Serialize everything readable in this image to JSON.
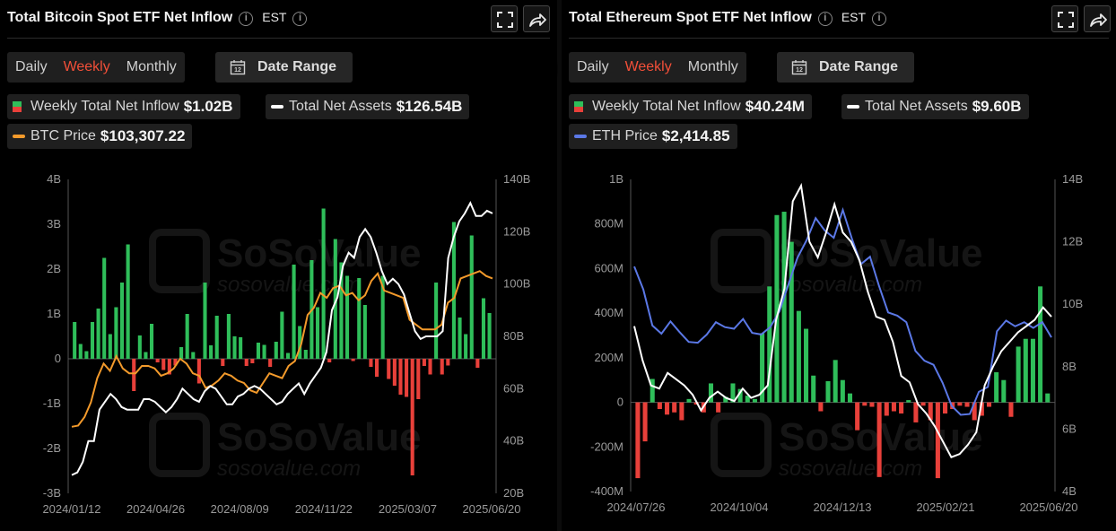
{
  "btc": {
    "title": "Total Bitcoin Spot ETF Net Inflow",
    "timezone": "EST",
    "tabs": [
      "Daily",
      "Weekly",
      "Monthly"
    ],
    "active_tab": "Weekly",
    "date_range_label": "Date Range",
    "calendar_day": "12",
    "stats": [
      {
        "label": "Weekly Total Net Inflow",
        "value": "$1.02B"
      },
      {
        "label": "Total Net Assets",
        "value": "$126.54B"
      },
      {
        "label": "BTC Price",
        "value": "$103,307.22"
      }
    ],
    "watermark": {
      "name": "SoSoValue",
      "url": "sosovalue.com"
    }
  },
  "eth": {
    "title": "Total Ethereum Spot ETF Net Inflow",
    "timezone": "EST",
    "tabs": [
      "Daily",
      "Weekly",
      "Monthly"
    ],
    "active_tab": "Weekly",
    "date_range_label": "Date Range",
    "calendar_day": "12",
    "stats": [
      {
        "label": "Weekly Total Net Inflow",
        "value": "$40.24M"
      },
      {
        "label": "Total Net Assets",
        "value": "$9.60B"
      },
      {
        "label": "ETH Price",
        "value": "$2,414.85"
      }
    ],
    "watermark": {
      "name": "SoSoValue",
      "url": "sosovalue.com"
    }
  },
  "colors": {
    "inflow": "#2fbe5a",
    "outflow": "#e8403a",
    "assets": "#ffffff",
    "btc_price": "#f39a2b",
    "eth_price": "#5b78e6",
    "active_tab": "#f24f38"
  },
  "chart_data": [
    {
      "type": "bar",
      "x_labels": [
        "2024/01/12",
        "2024/04/26",
        "2024/08/09",
        "2024/11/22",
        "2025/03/07",
        "2025/06/20"
      ],
      "y_left_ticks": [
        "4B",
        "3B",
        "2B",
        "1B",
        "0",
        "-1B",
        "-2B",
        "-3B"
      ],
      "y_right_ticks": [
        "140B",
        "120B",
        "100B",
        "80B",
        "60B",
        "40B",
        "20B"
      ],
      "ylim_left": [
        -3,
        4
      ],
      "ylim_right": [
        20,
        140
      ],
      "grid": false,
      "series": [
        {
          "name": "Weekly Total Net Inflow",
          "unit": "B USD",
          "values": [
            0.82,
            0.33,
            0.17,
            0.82,
            1.12,
            2.25,
            0.55,
            1.15,
            1.7,
            2.55,
            -0.72,
            0.52,
            0.15,
            0.78,
            -0.08,
            -0.25,
            -0.35,
            -0.15,
            0.26,
            1.0,
            0.15,
            -0.55,
            1.7,
            0.3,
            0.96,
            -0.16,
            1.0,
            0.5,
            0.48,
            -0.16,
            -0.1,
            0.36,
            0.31,
            -0.18,
            0.38,
            1.05,
            0.13,
            2.1,
            0.73,
            0.2,
            2.2,
            1.15,
            3.35,
            -0.08,
            2.67,
            2.15,
            1.85,
            -0.05,
            1.8,
            1.2,
            -0.18,
            -0.4,
            1.85,
            -0.45,
            -0.6,
            -0.8,
            -0.85,
            -2.6,
            -0.9,
            -0.16,
            -0.35,
            1.7,
            -0.35,
            -0.15,
            3.05,
            0.92,
            0.55,
            2.75,
            -0.2,
            1.35,
            1.02
          ]
        },
        {
          "name": "Total Net Assets",
          "unit": "B USD",
          "values": [
            27,
            28,
            32,
            40,
            40,
            52,
            55,
            58,
            56,
            53,
            52,
            52,
            52,
            56,
            56,
            55,
            53,
            51,
            53,
            56,
            60,
            58,
            56,
            55,
            59,
            61,
            60,
            57,
            54,
            54,
            57,
            58,
            60,
            61,
            60,
            58,
            56,
            54,
            55,
            58,
            60,
            62,
            58,
            62,
            65,
            68,
            74,
            90,
            95,
            107,
            112,
            110,
            118,
            121,
            118,
            112,
            105,
            100,
            102,
            100,
            96,
            89,
            82,
            79,
            80,
            80,
            80,
            82,
            110,
            118,
            124,
            127,
            131,
            126,
            126,
            128,
            127
          ]
        },
        {
          "name": "BTC Price",
          "unit": "USD",
          "values": [
            42000,
            42500,
            46000,
            52000,
            62000,
            68000,
            65000,
            71000,
            66000,
            64000,
            64000,
            67000,
            67000,
            66000,
            63000,
            64000,
            66000,
            70000,
            68000,
            64000,
            63000,
            58000,
            59000,
            61000,
            64000,
            63000,
            61000,
            60000,
            57000,
            56000,
            60000,
            64000,
            63000,
            62000,
            67000,
            69000,
            76000,
            88000,
            91000,
            97000,
            95000,
            99000,
            100000,
            96000,
            97000,
            94000,
            96000,
            102000,
            105000,
            98000,
            97000,
            96000,
            95000,
            86000,
            84000,
            82000,
            82000,
            82000,
            84000,
            93000,
            95000,
            103000,
            104000,
            105000,
            106000,
            104000,
            103000
          ]
        }
      ]
    },
    {
      "type": "bar",
      "x_labels": [
        "2024/07/26",
        "2024/10/04",
        "2024/12/13",
        "2025/02/21",
        "2025/06/20"
      ],
      "y_left_ticks": [
        "1B",
        "800M",
        "600M",
        "400M",
        "200M",
        "0",
        "-200M",
        "-400M"
      ],
      "y_right_ticks": [
        "14B",
        "12B",
        "10B",
        "8B",
        "6B",
        "4B"
      ],
      "ylim_left": [
        -400,
        1000
      ],
      "ylim_right": [
        4,
        14
      ],
      "grid": false,
      "series": [
        {
          "name": "Weekly Total Net Inflow",
          "unit": "M USD",
          "values": [
            -340,
            -175,
            105,
            -30,
            -55,
            -45,
            -80,
            15,
            -10,
            -45,
            85,
            -45,
            25,
            85,
            60,
            30,
            15,
            310,
            520,
            840,
            855,
            720,
            410,
            330,
            120,
            -40,
            95,
            190,
            100,
            40,
            -125,
            -15,
            -20,
            -335,
            -60,
            -40,
            -50,
            10,
            -90,
            -15,
            -80,
            -340,
            -50,
            -30,
            -15,
            -20,
            -80,
            -60,
            -20,
            135,
            100,
            -65,
            250,
            285,
            285,
            520,
            40
          ]
        },
        {
          "name": "Total Net Assets",
          "unit": "B USD",
          "values": [
            9.3,
            8.2,
            7.4,
            7.3,
            7.8,
            7.6,
            7.4,
            7.1,
            6.6,
            7.0,
            7.2,
            7.0,
            6.9,
            7.3,
            7.0,
            7.1,
            7.4,
            9.5,
            10.5,
            13.3,
            13.8,
            12.0,
            11.5,
            12.3,
            13.2,
            12.3,
            12.0,
            11.4,
            10.4,
            9.6,
            9.5,
            8.8,
            7.7,
            7.5,
            6.8,
            6.5,
            6.1,
            5.6,
            5.1,
            5.2,
            5.5,
            5.9,
            7.4,
            8.0,
            8.5,
            8.8,
            9.1,
            9.3,
            9.5,
            9.9,
            9.6
          ]
        },
        {
          "name": "ETH Price",
          "unit": "USD",
          "values": [
            3280,
            3000,
            2560,
            2460,
            2610,
            2480,
            2360,
            2350,
            2450,
            2600,
            2540,
            2520,
            2640,
            2470,
            2450,
            2540,
            2730,
            3060,
            3390,
            3600,
            3870,
            3720,
            3630,
            3970,
            3620,
            3310,
            3400,
            3040,
            2720,
            2680,
            2600,
            2250,
            2130,
            2080,
            1860,
            1580,
            1470,
            1480,
            1750,
            1810,
            2490,
            2620,
            2550,
            2600,
            2530,
            2600,
            2415
          ]
        }
      ]
    }
  ]
}
